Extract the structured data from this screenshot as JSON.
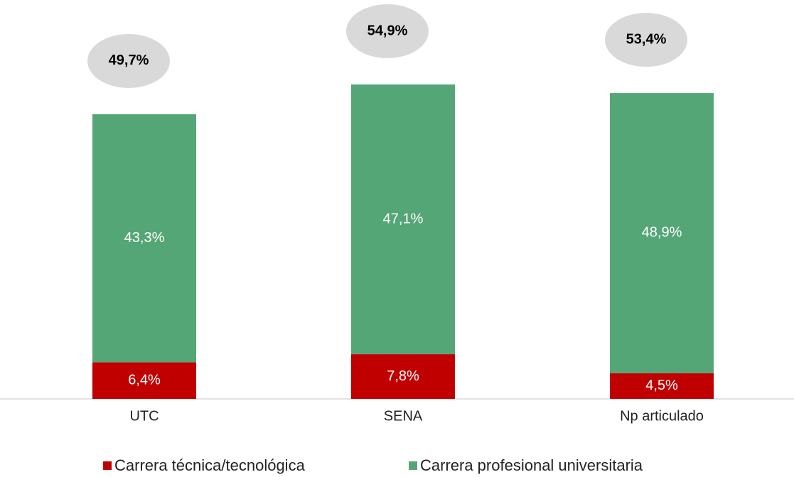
{
  "chart_data": {
    "type": "stacked_bar",
    "categories": [
      "UTC",
      "SENA",
      "Np articulado"
    ],
    "series": [
      {
        "name": "Carrera técnica/tecnológica",
        "color": "#c00000",
        "values": [
          6.4,
          7.8,
          4.5
        ],
        "value_labels": [
          "6,4%",
          "7,8%",
          "4,5%"
        ]
      },
      {
        "name": "Carrera profesional universitaria",
        "color": "#55a677",
        "values": [
          43.3,
          47.1,
          48.9
        ],
        "value_labels": [
          "43,3%",
          "47,1%",
          "48,9%"
        ]
      }
    ],
    "totals": [
      49.7,
      54.9,
      53.4
    ],
    "total_labels": [
      "49,7%",
      "54,9%",
      "53,4%"
    ],
    "legend": "bottom"
  }
}
